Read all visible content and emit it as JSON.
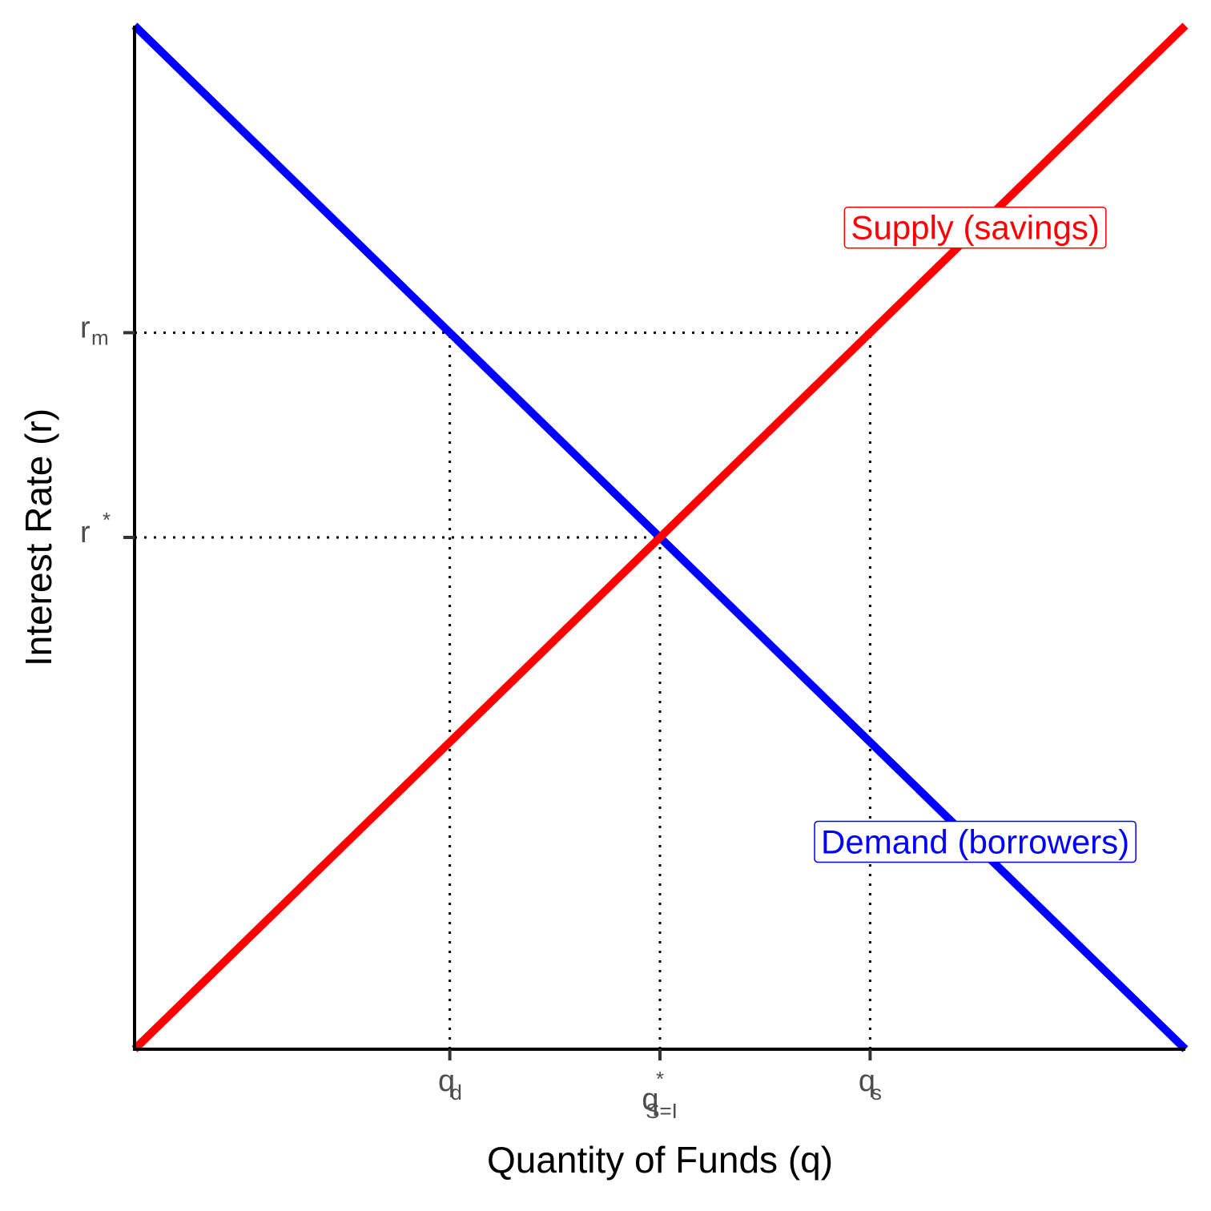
{
  "chart_data": {
    "type": "line",
    "xlabel": "Quantity of Funds (q)",
    "ylabel": "Interest Rate (r)",
    "xlim": [
      0,
      10
    ],
    "ylim": [
      0,
      10
    ],
    "xticks": [
      {
        "value": 3,
        "label": "q",
        "subscript": "d"
      },
      {
        "value": 5,
        "label": "q",
        "superscript": "*",
        "subscript": "S=I"
      },
      {
        "value": 7,
        "label": "q",
        "subscript": "s"
      }
    ],
    "yticks": [
      {
        "value": 5,
        "label": "r",
        "superscript": "*"
      },
      {
        "value": 7,
        "label": "r",
        "subscript": "m"
      }
    ],
    "grid": false,
    "x": [
      0,
      10
    ],
    "series": [
      {
        "name": "Demand (borrowers)",
        "color": "#0000ff",
        "values": [
          10,
          0
        ]
      },
      {
        "name": "Supply (savings)",
        "color": "#ff0000",
        "values": [
          0,
          10
        ]
      }
    ],
    "annotations": [
      {
        "text": "Supply (savings)",
        "x": 8,
        "y": 8,
        "color": "#ff0000"
      },
      {
        "text": "Demand (borrowers)",
        "x": 8,
        "y": 2,
        "color": "#0000ff"
      }
    ],
    "reference_lines": [
      {
        "x": [
          0,
          7
        ],
        "y": [
          7,
          7
        ]
      },
      {
        "x": [
          3,
          3
        ],
        "y": [
          0,
          7
        ]
      },
      {
        "x": [
          7,
          7
        ],
        "y": [
          0,
          7
        ]
      },
      {
        "x": [
          0,
          5
        ],
        "y": [
          5,
          5
        ]
      },
      {
        "x": [
          5,
          5
        ],
        "y": [
          0,
          5
        ]
      }
    ]
  }
}
